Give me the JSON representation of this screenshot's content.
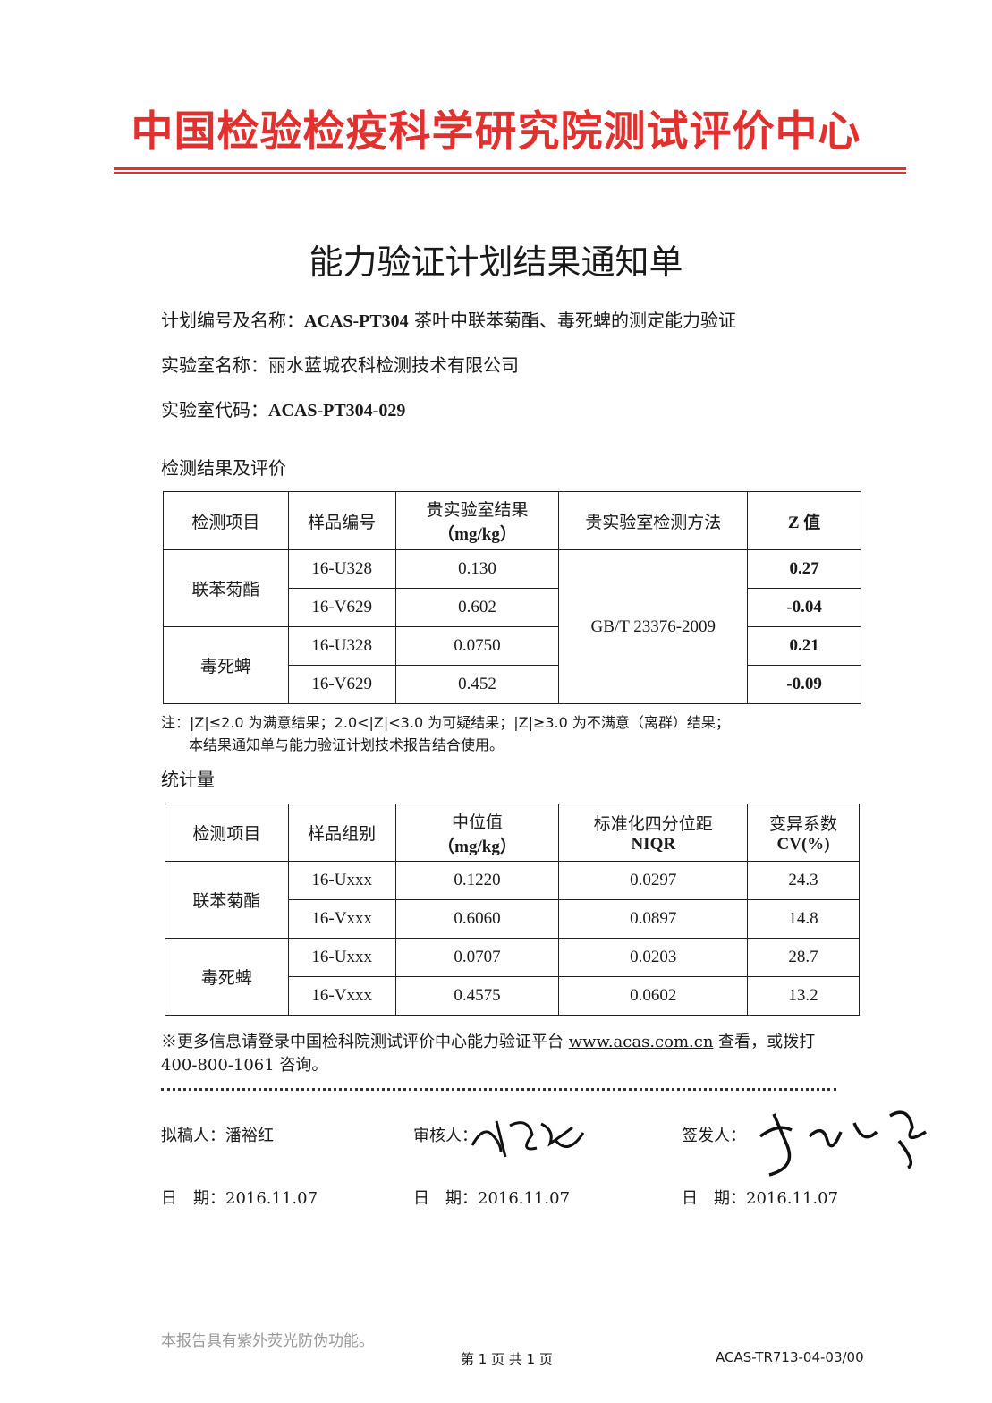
{
  "header": {
    "organization": "中国检验检疫科学研究院测试评价中心",
    "accent_color": "#e2302f"
  },
  "document": {
    "title": "能力验证计划结果通知单",
    "plan_label": "计划编号及名称：",
    "plan_code": "ACAS-PT304",
    "plan_name": " 茶叶中联苯菊酯、毒死蜱的测定能力验证",
    "lab_name_label": "实验室名称：",
    "lab_name": "丽水蓝城农科检测技术有限公司",
    "lab_code_label": "实验室代码：",
    "lab_code": "ACAS-PT304-029"
  },
  "results": {
    "section_title": "检测结果及评价",
    "headers": [
      "检测项目",
      "样品编号",
      "贵实验室结果",
      "（mg/kg）",
      "贵实验室检测方法",
      "Z 值"
    ],
    "method": "GB/T 23376-2009",
    "groups": [
      {
        "item": "联苯菊酯",
        "rows": [
          {
            "sample": "16-U328",
            "result": "0.130",
            "z": "0.27"
          },
          {
            "sample": "16-V629",
            "result": "0.602",
            "z": "-0.04"
          }
        ]
      },
      {
        "item": "毒死蜱",
        "rows": [
          {
            "sample": "16-U328",
            "result": "0.0750",
            "z": "0.21"
          },
          {
            "sample": "16-V629",
            "result": "0.452",
            "z": "-0.09"
          }
        ]
      }
    ],
    "note_line1": "注：|Z|≤2.0 为满意结果；2.0<|Z|<3.0 为可疑结果；|Z|≥3.0 为不满意（离群）结果；",
    "note_line2": "本结果通知单与能力验证计划技术报告结合使用。"
  },
  "statistics": {
    "section_title": "统计量",
    "headers": [
      "检测项目",
      "样品组别",
      "中位值",
      "（mg/kg）",
      "标准化四分位距",
      "NIQR",
      "变异系数",
      "CV(%)"
    ],
    "groups": [
      {
        "item": "联苯菊酯",
        "rows": [
          {
            "group": "16-Uxxx",
            "median": "0.1220",
            "niqr": "0.0297",
            "cv": "24.3"
          },
          {
            "group": "16-Vxxx",
            "median": "0.6060",
            "niqr": "0.0897",
            "cv": "14.8"
          }
        ]
      },
      {
        "item": "毒死蜱",
        "rows": [
          {
            "group": "16-Uxxx",
            "median": "0.0707",
            "niqr": "0.0203",
            "cv": "28.7"
          },
          {
            "group": "16-Vxxx",
            "median": "0.4575",
            "niqr": "0.0602",
            "cv": "13.2"
          }
        ]
      }
    ]
  },
  "more_info": {
    "prefix": "※更多信息请登录中国检科院测试评价中心能力验证平台 ",
    "link": "www.acas.com.cn",
    "suffix": " 查看，或拨打",
    "line2": "400-800-1061 咨询。"
  },
  "signatures": {
    "drafter_label": "拟稿人：",
    "drafter": "潘裕红",
    "reviewer_label": "审核人：",
    "reviewer_signature": "handwritten",
    "issuer_label": "签发人：",
    "issuer_signature": "handwritten",
    "date_label": "日　期：",
    "date": "2016.11.07"
  },
  "footer": {
    "anti_counterfeit": "本报告具有紫外荧光防伪功能。",
    "page": "第 1 页  共 1 页",
    "form_code": "ACAS-TR713-04-03/00"
  }
}
